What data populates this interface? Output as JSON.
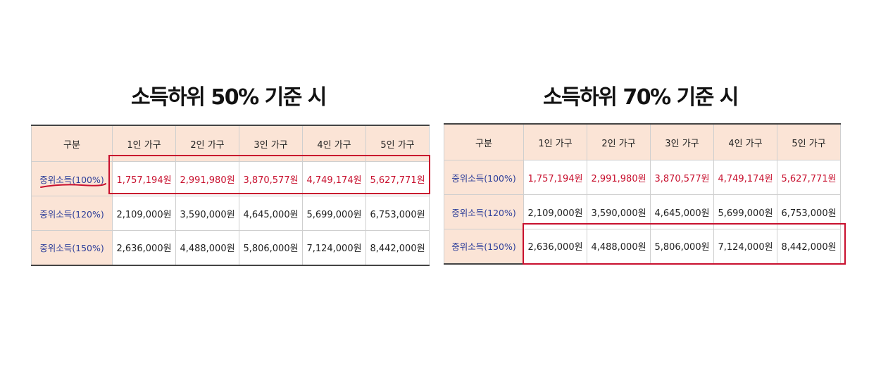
{
  "colors": {
    "header_bg": "#fbe4d6",
    "label_text": "#2f3f9a",
    "median_text": "#c8102e",
    "highlight_border": "#c8102e"
  },
  "left": {
    "title": "소득하위 50% 기준 시",
    "headers": [
      "구분",
      "1인 가구",
      "2인 가구",
      "3인 가구",
      "4인 가구",
      "5인 가구"
    ],
    "rows": [
      {
        "label": "중위소득(100%)",
        "values": [
          "1,757,194원",
          "2,991,980원",
          "3,870,577원",
          "4,749,174원",
          "5,627,771원"
        ]
      },
      {
        "label": "중위소득(120%)",
        "values": [
          "2,109,000원",
          "3,590,000원",
          "4,645,000원",
          "5,699,000원",
          "6,753,000원"
        ]
      },
      {
        "label": "중위소득(150%)",
        "values": [
          "2,636,000원",
          "4,488,000원",
          "5,806,000원",
          "7,124,000원",
          "8,442,000원"
        ]
      }
    ],
    "highlighted_row": "중위소득(100%)"
  },
  "right": {
    "title": "소득하위 70% 기준 시",
    "headers": [
      "구분",
      "1인 가구",
      "2인 가구",
      "3인 가구",
      "4인 가구",
      "5인 가구"
    ],
    "rows": [
      {
        "label": "중위소득(100%)",
        "values": [
          "1,757,194원",
          "2,991,980원",
          "3,870,577원",
          "4,749,174원",
          "5,627,771원"
        ]
      },
      {
        "label": "중위소득(120%)",
        "values": [
          "2,109,000원",
          "3,590,000원",
          "4,645,000원",
          "5,699,000원",
          "6,753,000원"
        ]
      },
      {
        "label": "중위소득(150%)",
        "values": [
          "2,636,000원",
          "4,488,000원",
          "5,806,000원",
          "7,124,000원",
          "8,442,000원"
        ]
      }
    ],
    "highlighted_row": "중위소득(150%)"
  }
}
